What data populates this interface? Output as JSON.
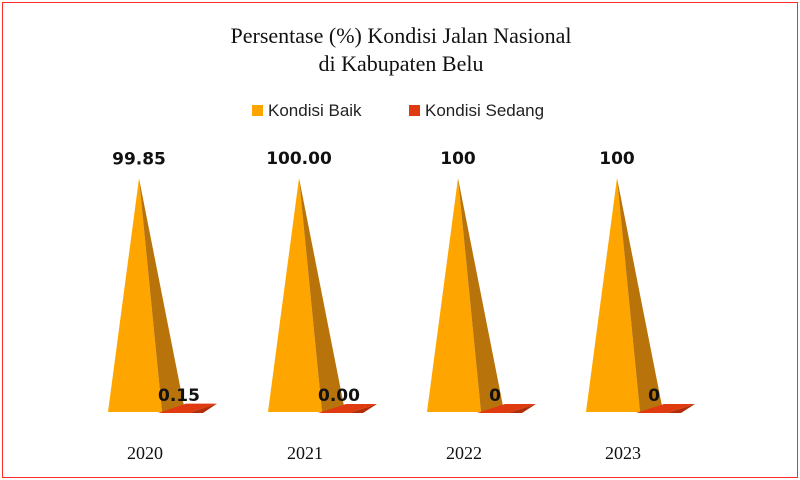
{
  "chart_data": {
    "type": "bar",
    "title_lines": [
      "Persentase (%) Kondisi Jalan Nasional",
      "di Kabupaten Belu"
    ],
    "categories": [
      "2020",
      "2021",
      "2022",
      "2023"
    ],
    "series": [
      {
        "name": "Kondisi Baik",
        "values": [
          99.85,
          100,
          100,
          100
        ],
        "labels": [
          "99.85",
          "100.00",
          "100",
          "100"
        ],
        "color": "#ffa500",
        "side_color": "#b8740a"
      },
      {
        "name": "Kondisi Sedang",
        "values": [
          0.15,
          0,
          0,
          0
        ],
        "labels": [
          "0.15",
          "0.00",
          "0",
          "0"
        ],
        "color": "#e03a10",
        "side_color": "#b22d0a"
      }
    ],
    "ylim": [
      0,
      100
    ],
    "legend_position": "top",
    "grid": false
  }
}
